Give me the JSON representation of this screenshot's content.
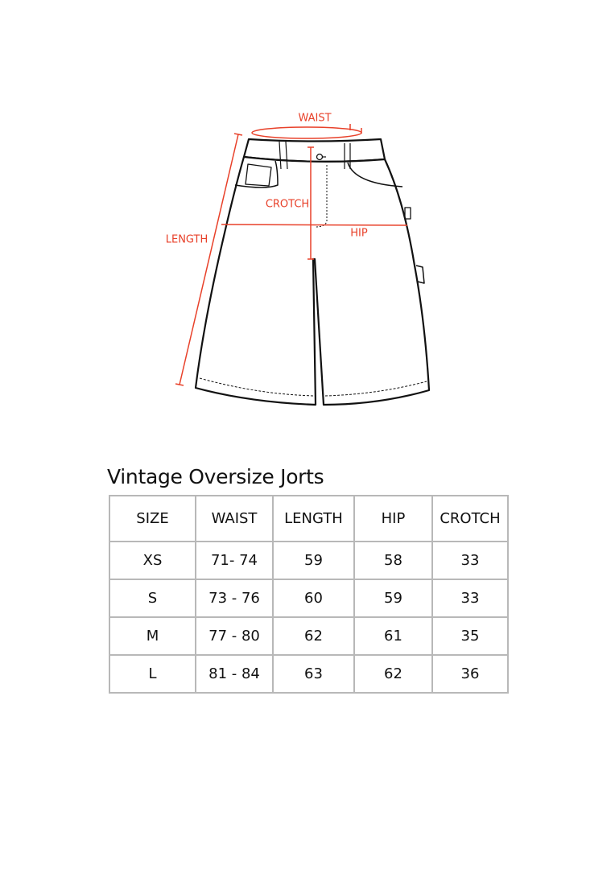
{
  "diagram": {
    "labels": {
      "waist": "WAIST",
      "crotch": "CROTCH",
      "length": "LENGTH",
      "hip": "HIP"
    },
    "measure_color": "#e8412a",
    "outline_color": "#111111"
  },
  "title": "Vintage Oversize Jorts",
  "table": {
    "headers": [
      "SIZE",
      "WAIST",
      "LENGTH",
      "HIP",
      "CROTCH"
    ],
    "rows": [
      [
        "XS",
        "71- 74",
        "59",
        "58",
        "33"
      ],
      [
        "S",
        "73 - 76",
        "60",
        "59",
        "33"
      ],
      [
        "M",
        "77 - 80",
        "62",
        "61",
        "35"
      ],
      [
        "L",
        "81 - 84",
        "63",
        "62",
        "36"
      ]
    ]
  }
}
